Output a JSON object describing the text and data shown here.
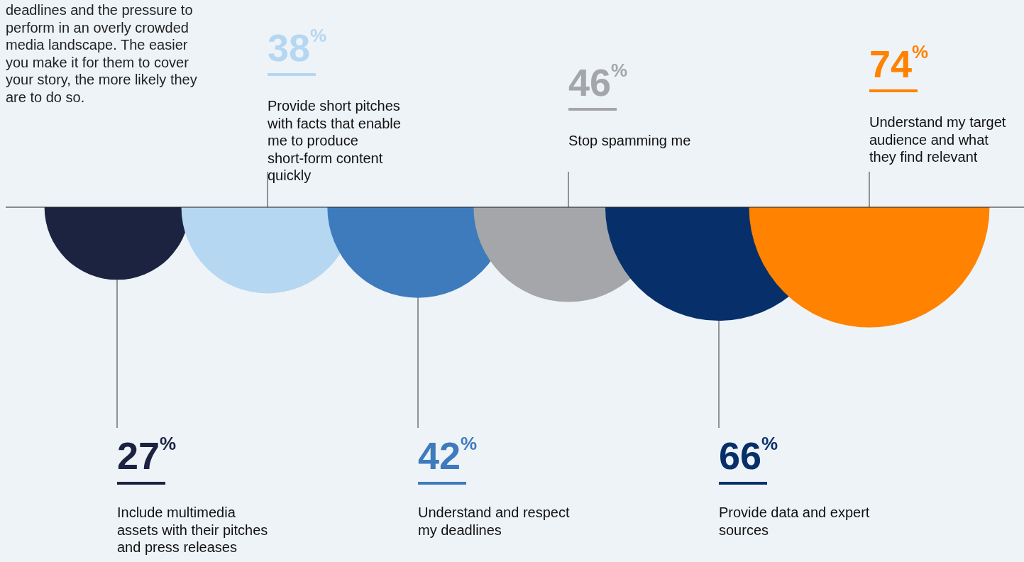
{
  "chart_data": {
    "type": "other",
    "categories": [
      "Include multimedia assets with their pitches and press releases",
      "Provide short pitches with facts that enable me to produce short-form content quickly",
      "Understand and respect my deadlines",
      "Stop spamming me",
      "Provide data and expert sources",
      "Understand my target audience and what they find relevant"
    ],
    "values": [
      27,
      38,
      42,
      46,
      66,
      74
    ],
    "value_labels": [
      "27%",
      "38%",
      "42%",
      "46%",
      "66%",
      "74%"
    ],
    "colors": [
      "#1b2340",
      "#b5d7f1",
      "#3d7bbd",
      "#a5a6a9",
      "#07306a",
      "#ff8200"
    ],
    "annotations": [
      "deadlines and the pressure to perform in an overly crowded media landscape. The easier you make it for them to cover your story, the more likely they are to do so."
    ]
  }
}
